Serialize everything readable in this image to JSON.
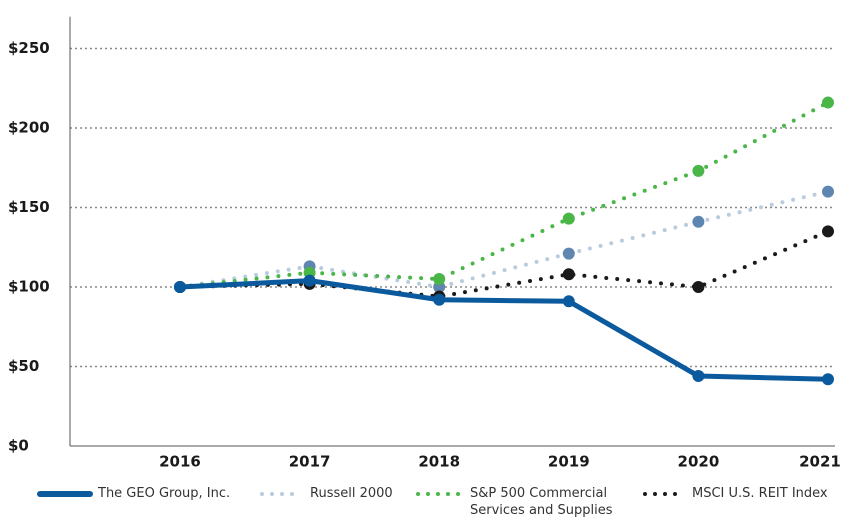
{
  "chart_data": {
    "type": "line",
    "categories": [
      "2016",
      "2017",
      "2018",
      "2019",
      "2020",
      "2021"
    ],
    "series": [
      {
        "name": "The GEO Group, Inc.",
        "color": "#0b5a9e",
        "style": "solid",
        "values": [
          100,
          104,
          92,
          91,
          44,
          42
        ]
      },
      {
        "name": "Russell 2000",
        "color": "#b9cbde",
        "marker_color": "#5f86b0",
        "style": "dotted",
        "values": [
          100,
          113,
          100,
          121,
          141,
          160
        ]
      },
      {
        "name": "S&P 500 Commercial Services and Supplies",
        "color": "#4ab648",
        "style": "dotted",
        "values": [
          100,
          109,
          105,
          143,
          173,
          216
        ]
      },
      {
        "name": "MSCI U.S. REIT Index",
        "color": "#1a1a1a",
        "style": "dotted",
        "values": [
          100,
          102,
          94,
          108,
          100,
          135
        ]
      }
    ],
    "ylim": [
      0,
      270
    ],
    "yticks": [
      {
        "value": 0,
        "label": "$0"
      },
      {
        "value": 50,
        "label": "$50"
      },
      {
        "value": 100,
        "label": "$100"
      },
      {
        "value": 150,
        "label": "$150"
      },
      {
        "value": 200,
        "label": "$200"
      },
      {
        "value": 250,
        "label": "$250"
      }
    ],
    "grid": true,
    "legend": "bottom"
  }
}
